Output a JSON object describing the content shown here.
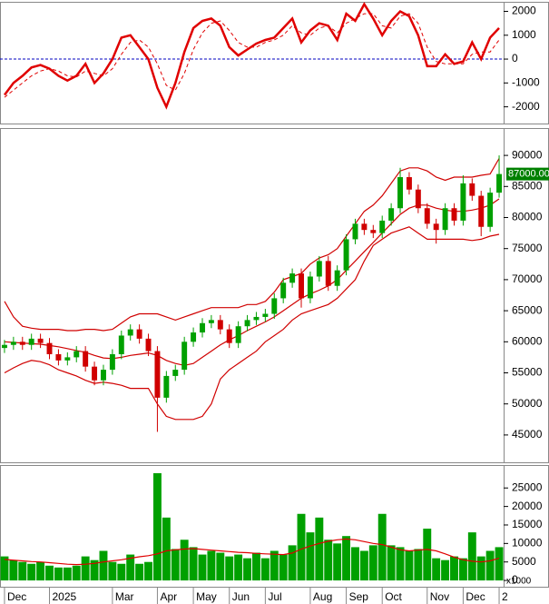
{
  "chart_data": [
    {
      "type": "line",
      "ylim": [
        -2700,
        2400
      ],
      "yticks": [
        -2000,
        -1000,
        0,
        1000,
        2000
      ],
      "zero_line_color": "#0000c0",
      "series": [
        {
          "color": "#e00000",
          "values": [
            -1500,
            -1000,
            -700,
            -350,
            -250,
            -400,
            -700,
            -900,
            -700,
            -200,
            -1000,
            -600,
            0,
            900,
            1000,
            500,
            0,
            -1200,
            -2000,
            -1000,
            300,
            1300,
            1600,
            1700,
            1400,
            500,
            150,
            400,
            650,
            800,
            900,
            1300,
            1700,
            700,
            1200,
            1500,
            1400,
            800,
            1900,
            1600,
            2300,
            1700,
            1000,
            1600,
            2000,
            1800,
            1000,
            -300,
            -300,
            200,
            -200,
            -100,
            700,
            0,
            900,
            1300
          ]
        },
        {
          "color": "#e00000",
          "dashed": true,
          "values": [
            -1600,
            -1300,
            -1000,
            -700,
            -500,
            -400,
            -500,
            -700,
            -750,
            -500,
            -600,
            -700,
            -400,
            200,
            700,
            800,
            500,
            -200,
            -1100,
            -1300,
            -600,
            400,
            1100,
            1500,
            1600,
            1200,
            700,
            500,
            500,
            700,
            800,
            1000,
            1400,
            1100,
            1000,
            1300,
            1400,
            1100,
            1500,
            1700,
            1900,
            1900,
            1400,
            1300,
            1800,
            1900,
            1500,
            500,
            -100,
            -200,
            -200,
            -200,
            200,
            300,
            300,
            800
          ]
        }
      ]
    },
    {
      "type": "candlestick",
      "ylim": [
        40600,
        94400
      ],
      "yticks": [
        45000,
        50000,
        55000,
        60000,
        65000,
        70000,
        75000,
        80000,
        85000,
        90000
      ],
      "up_color": "#00a000",
      "down_color": "#d00000",
      "open": [
        59000,
        59500,
        60000,
        59500,
        60500,
        59800,
        58000,
        57000,
        57500,
        58500,
        56000,
        53800,
        55500,
        58000,
        61000,
        62000,
        60500,
        58500,
        51000,
        54500,
        55500,
        60000,
        61500,
        63000,
        63500,
        62000,
        59800,
        62500,
        63500,
        64000,
        64500,
        67000,
        69500,
        71000,
        67000,
        70500,
        73000,
        69000,
        71500,
        76500,
        79000,
        78000,
        77500,
        79500,
        81500,
        86500,
        84500,
        81500,
        79000,
        78000,
        81500,
        79500,
        85500,
        83500,
        78500,
        84000
      ],
      "high": [
        60300,
        60800,
        60800,
        61300,
        61300,
        60600,
        58800,
        58300,
        59300,
        59300,
        56800,
        56300,
        58800,
        61800,
        62800,
        62800,
        61300,
        59300,
        55300,
        56300,
        60800,
        62300,
        63800,
        64300,
        64300,
        62800,
        63300,
        64300,
        64800,
        65300,
        67800,
        70300,
        71800,
        71800,
        71300,
        73800,
        73800,
        72300,
        77300,
        79800,
        79800,
        78800,
        80300,
        82300,
        88000,
        87300,
        85300,
        82300,
        79800,
        82300,
        82300,
        86800,
        86300,
        84300,
        84800,
        90000
      ],
      "low": [
        58200,
        58700,
        58700,
        58700,
        59000,
        57200,
        56200,
        56200,
        56700,
        55200,
        53000,
        53000,
        54700,
        57200,
        60200,
        59700,
        57700,
        45500,
        50200,
        53700,
        54700,
        59200,
        60700,
        62200,
        61200,
        59000,
        59000,
        61700,
        62700,
        63200,
        63700,
        66200,
        68700,
        65500,
        66200,
        69700,
        68200,
        68200,
        70700,
        75700,
        77200,
        76700,
        76700,
        78700,
        80700,
        83700,
        80700,
        78200,
        75800,
        77200,
        78700,
        78700,
        82700,
        77000,
        77700,
        83200
      ],
      "close": [
        59500,
        60000,
        59500,
        60500,
        59800,
        58000,
        57000,
        57500,
        58500,
        56000,
        53800,
        55500,
        58000,
        61000,
        62000,
        60500,
        58500,
        51000,
        54500,
        55500,
        60000,
        61500,
        63000,
        63500,
        62000,
        59800,
        62500,
        63500,
        64000,
        64500,
        67000,
        69500,
        71000,
        67000,
        70500,
        73000,
        69000,
        71500,
        76500,
        79000,
        78000,
        77500,
        79500,
        81500,
        86500,
        84500,
        81500,
        79000,
        78000,
        81500,
        79500,
        85500,
        83500,
        78500,
        84000,
        87000
      ],
      "price_label": "87000.00",
      "price_label_color": "#008000",
      "series": [
        {
          "color": "#d00000",
          "values": [
            66500,
            64000,
            62500,
            62200,
            62000,
            62000,
            62000,
            61800,
            61800,
            62000,
            62000,
            61800,
            62000,
            63000,
            64000,
            64500,
            64500,
            64500,
            64000,
            63500,
            64000,
            64500,
            65000,
            65500,
            65500,
            65500,
            65500,
            66000,
            66000,
            66500,
            68000,
            70000,
            70500,
            71000,
            72500,
            73500,
            74000,
            75000,
            77000,
            79000,
            81000,
            82000,
            83500,
            85500,
            87500,
            88000,
            88000,
            87500,
            86500,
            86000,
            86500,
            86500,
            86500,
            86800,
            87000,
            89500
          ]
        },
        {
          "color": "#d00000",
          "values": [
            60000,
            59900,
            59800,
            59700,
            59600,
            59400,
            59200,
            58900,
            58600,
            58300,
            57800,
            57400,
            57300,
            57500,
            57800,
            58000,
            58200,
            57800,
            57000,
            56500,
            56200,
            56500,
            57500,
            58500,
            59500,
            60300,
            61000,
            61800,
            62500,
            63200,
            64000,
            65000,
            66000,
            67000,
            67700,
            68300,
            69000,
            70000,
            71500,
            73000,
            74500,
            76000,
            77500,
            79000,
            80500,
            81500,
            82000,
            82000,
            81500,
            81200,
            81000,
            81000,
            81200,
            81500,
            82000,
            83000
          ]
        },
        {
          "color": "#d00000",
          "values": [
            55000,
            55800,
            56500,
            57000,
            56800,
            56300,
            55500,
            55000,
            54500,
            53800,
            53300,
            53500,
            53300,
            53000,
            52500,
            52500,
            52500,
            50000,
            48000,
            47500,
            47500,
            47500,
            48000,
            50000,
            54000,
            55500,
            56500,
            57500,
            58500,
            60000,
            61000,
            62000,
            63500,
            64500,
            65000,
            65500,
            66000,
            67000,
            68500,
            70000,
            73000,
            75500,
            76500,
            77500,
            78000,
            78500,
            77500,
            76500,
            76500,
            76500,
            76500,
            76500,
            76300,
            76500,
            77000,
            77300
          ]
        }
      ]
    },
    {
      "type": "bar",
      "ylim": [
        -1700,
        31200
      ],
      "yticks": [
        0,
        5000,
        10000,
        15000,
        20000,
        25000
      ],
      "unit_label": "x1000",
      "color": "#00a000",
      "categories": [
        "Dec",
        null,
        null,
        null,
        null,
        "2025",
        null,
        null,
        null,
        null,
        null,
        null,
        "Mar",
        null,
        null,
        null,
        null,
        "Apr",
        null,
        null,
        null,
        "May",
        null,
        null,
        null,
        "Jun",
        null,
        null,
        null,
        "Jul",
        null,
        null,
        null,
        null,
        "Aug",
        null,
        null,
        null,
        "Sep",
        null,
        null,
        null,
        "Oct",
        null,
        null,
        null,
        null,
        "Nov",
        null,
        null,
        null,
        "Dec",
        null,
        null,
        null,
        "2"
      ],
      "values": [
        6500,
        5500,
        5000,
        4500,
        5000,
        4000,
        3500,
        3500,
        4000,
        6500,
        5500,
        8000,
        5000,
        4500,
        7000,
        4500,
        5000,
        29000,
        17000,
        8500,
        11000,
        9000,
        7000,
        8000,
        7500,
        6500,
        7000,
        6000,
        7500,
        6000,
        8000,
        7000,
        9500,
        18000,
        13000,
        17000,
        11000,
        10000,
        12000,
        9000,
        8000,
        9500,
        18000,
        9500,
        9000,
        8000,
        8500,
        14000,
        6000,
        5500,
        6500,
        6000,
        13000,
        6500,
        8000,
        9000
      ],
      "series": [
        {
          "color": "#e00000",
          "values": [
            5700,
            5500,
            5300,
            5100,
            5000,
            4800,
            4600,
            4400,
            4300,
            4400,
            4600,
            5000,
            5300,
            5600,
            6000,
            6400,
            6700,
            7200,
            8000,
            8300,
            8500,
            8600,
            8400,
            8200,
            8000,
            7800,
            7600,
            7500,
            7300,
            7200,
            7100,
            7000,
            7400,
            8500,
            9300,
            10000,
            10600,
            11000,
            11200,
            11000,
            10500,
            10000,
            9700,
            9000,
            8300,
            8000,
            8200,
            8400,
            8000,
            7200,
            6300,
            5600,
            5200,
            5000,
            5300,
            6000
          ]
        }
      ]
    }
  ]
}
